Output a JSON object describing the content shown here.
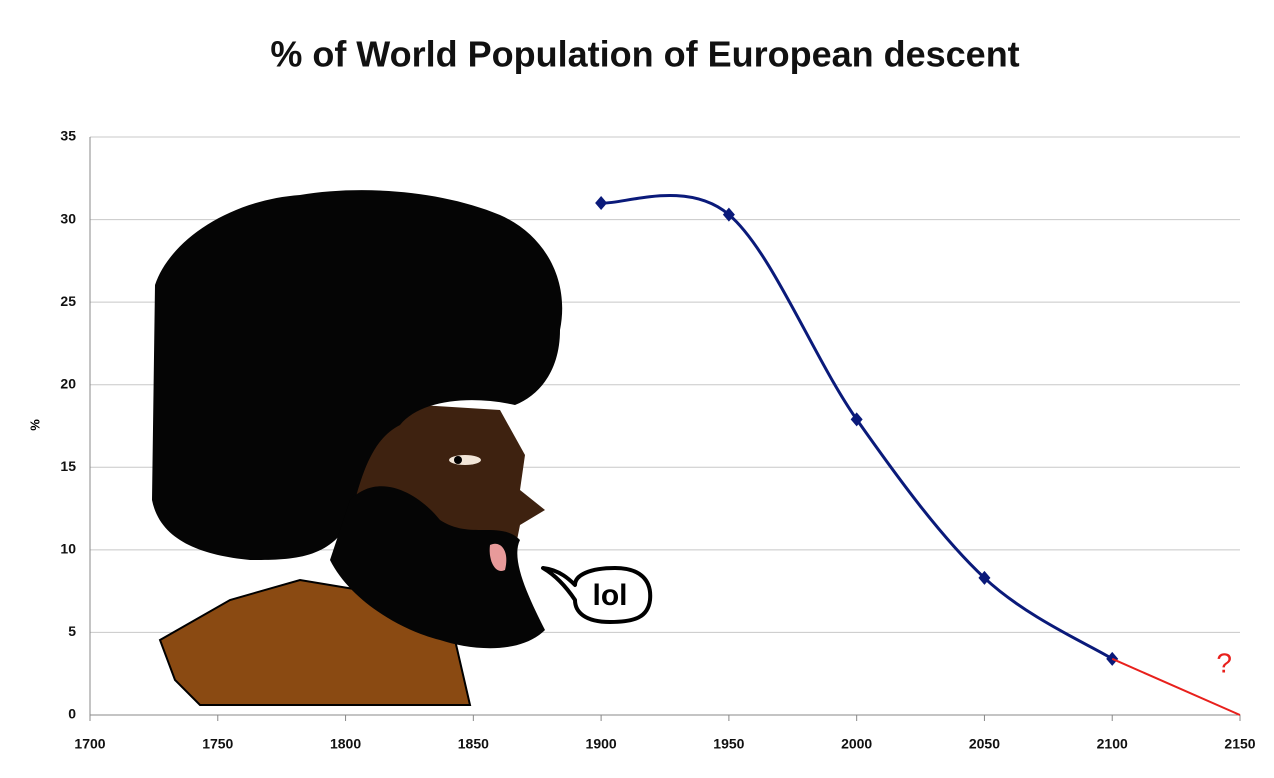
{
  "chart_data": {
    "type": "line",
    "title": "% of World Population of European descent",
    "y_label": "%",
    "x": [
      1900,
      1950,
      2000,
      2050,
      2100,
      2150
    ],
    "series": [
      {
        "color": "#0a1a7a",
        "values": [
          31,
          30.3,
          17.9,
          8.3,
          3.4,
          null
        ],
        "markers": true
      },
      {
        "color": "#e8201c",
        "values": [
          null,
          null,
          null,
          null,
          3.4,
          0
        ],
        "markers": false
      }
    ],
    "xlim": [
      1700,
      2150
    ],
    "xticks": [
      1700,
      1750,
      1800,
      1850,
      1900,
      1950,
      2000,
      2050,
      2100,
      2150
    ],
    "ylim": [
      0,
      35
    ],
    "yticks": [
      0,
      5,
      10,
      15,
      20,
      25,
      30,
      35
    ],
    "grid": true,
    "annotations": [
      {
        "text": "?",
        "x": 2125,
        "y": 3.2,
        "color": "#e8201c"
      },
      {
        "text": "lol"
      }
    ]
  }
}
